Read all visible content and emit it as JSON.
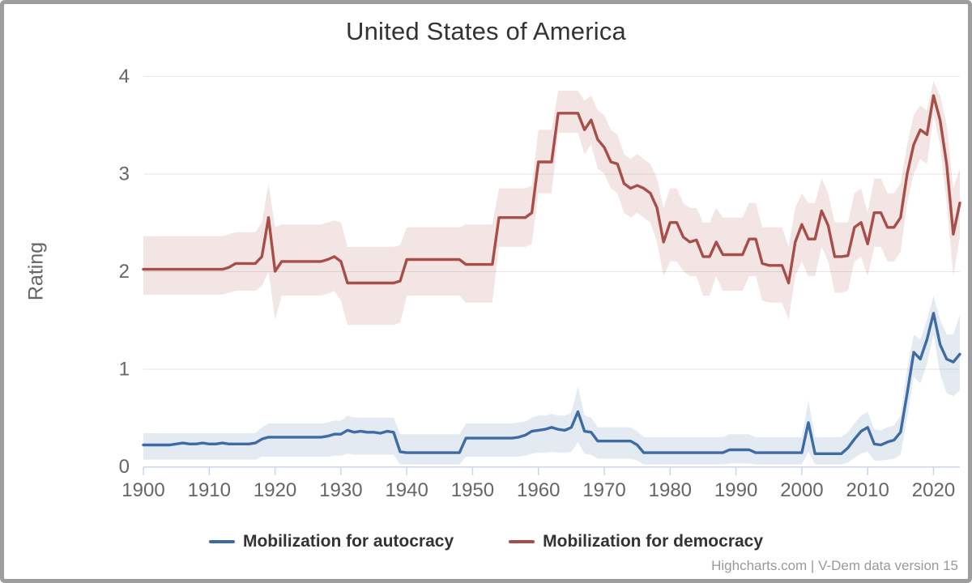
{
  "chart": {
    "title": "United States of America",
    "y_axis_title": "Rating",
    "credits": "Highcharts.com | V-Dem data version 15",
    "colors": {
      "background": "#ffffff",
      "frame": "#9d9d9d",
      "grid": "#e6e6e6",
      "axis": "#ccd6eb",
      "tick_labels": "#666666",
      "title_text": "#333333",
      "legend_text": "#333333",
      "credits_text": "#999999"
    }
  },
  "legend": {
    "items": [
      {
        "label": "Mobilization for autocracy",
        "color": "#3d6ca5"
      },
      {
        "label": "Mobilization for democracy",
        "color": "#a74e49"
      }
    ]
  },
  "chart_data": {
    "type": "line",
    "title": "United States of America",
    "xlabel": "",
    "ylabel": "Rating",
    "xlim": [
      1900,
      2024
    ],
    "ylim": [
      0,
      4
    ],
    "x_ticks": [
      1900,
      1910,
      1920,
      1930,
      1940,
      1950,
      1960,
      1970,
      1980,
      1990,
      2000,
      2010,
      2020
    ],
    "y_ticks": [
      0,
      1,
      2,
      3,
      4
    ],
    "grid": true,
    "legend_position": "bottom",
    "note": "Each series has a shaded confidence band given by band_low/band_high; x values are consecutive years 1900-2024",
    "series": [
      {
        "id": "autocracy",
        "name": "Mobilization for autocracy",
        "color": "#3d6ca5",
        "band_color": "rgba(61,108,165,0.14)",
        "values": [
          0.22,
          0.22,
          0.22,
          0.22,
          0.22,
          0.23,
          0.24,
          0.23,
          0.23,
          0.24,
          0.23,
          0.23,
          0.24,
          0.23,
          0.23,
          0.23,
          0.23,
          0.24,
          0.28,
          0.3,
          0.3,
          0.3,
          0.3,
          0.3,
          0.3,
          0.3,
          0.3,
          0.3,
          0.31,
          0.33,
          0.33,
          0.37,
          0.35,
          0.36,
          0.35,
          0.35,
          0.34,
          0.36,
          0.35,
          0.15,
          0.14,
          0.14,
          0.14,
          0.14,
          0.14,
          0.14,
          0.14,
          0.14,
          0.14,
          0.29,
          0.29,
          0.29,
          0.29,
          0.29,
          0.29,
          0.29,
          0.29,
          0.3,
          0.32,
          0.36,
          0.37,
          0.38,
          0.4,
          0.38,
          0.37,
          0.4,
          0.56,
          0.36,
          0.35,
          0.26,
          0.26,
          0.26,
          0.26,
          0.26,
          0.26,
          0.22,
          0.14,
          0.14,
          0.14,
          0.14,
          0.14,
          0.14,
          0.14,
          0.14,
          0.14,
          0.14,
          0.14,
          0.14,
          0.14,
          0.17,
          0.17,
          0.17,
          0.17,
          0.14,
          0.14,
          0.14,
          0.14,
          0.14,
          0.14,
          0.14,
          0.14,
          0.45,
          0.13,
          0.13,
          0.13,
          0.13,
          0.13,
          0.19,
          0.28,
          0.36,
          0.4,
          0.23,
          0.22,
          0.25,
          0.27,
          0.35,
          0.75,
          1.17,
          1.1,
          1.3,
          1.57,
          1.25,
          1.1,
          1.07,
          1.15
        ],
        "band_low": [
          0.07,
          0.07,
          0.07,
          0.07,
          0.07,
          0.07,
          0.07,
          0.07,
          0.07,
          0.07,
          0.07,
          0.07,
          0.07,
          0.07,
          0.07,
          0.07,
          0.07,
          0.07,
          0.1,
          0.1,
          0.1,
          0.1,
          0.1,
          0.1,
          0.1,
          0.1,
          0.1,
          0.1,
          0.1,
          0.11,
          0.11,
          0.13,
          0.12,
          0.12,
          0.12,
          0.12,
          0.12,
          0.12,
          0.12,
          0.02,
          0.02,
          0.02,
          0.02,
          0.02,
          0.02,
          0.02,
          0.02,
          0.02,
          0.02,
          0.1,
          0.1,
          0.1,
          0.1,
          0.1,
          0.1,
          0.1,
          0.1,
          0.1,
          0.11,
          0.13,
          0.14,
          0.14,
          0.15,
          0.14,
          0.14,
          0.15,
          0.25,
          0.13,
          0.12,
          0.08,
          0.08,
          0.08,
          0.08,
          0.08,
          0.08,
          0.06,
          0.02,
          0.02,
          0.02,
          0.02,
          0.02,
          0.02,
          0.02,
          0.02,
          0.02,
          0.02,
          0.02,
          0.02,
          0.02,
          0.03,
          0.03,
          0.03,
          0.03,
          0.02,
          0.02,
          0.02,
          0.02,
          0.02,
          0.02,
          0.02,
          0.02,
          0.15,
          0.02,
          0.02,
          0.02,
          0.02,
          0.02,
          0.04,
          0.09,
          0.13,
          0.15,
          0.06,
          0.06,
          0.07,
          0.08,
          0.12,
          0.5,
          0.92,
          0.85,
          1.05,
          1.35,
          0.95,
          0.75,
          0.72,
          0.78
        ],
        "band_high": [
          0.34,
          0.34,
          0.34,
          0.34,
          0.34,
          0.34,
          0.34,
          0.34,
          0.34,
          0.34,
          0.34,
          0.34,
          0.34,
          0.34,
          0.34,
          0.34,
          0.34,
          0.34,
          0.4,
          0.44,
          0.44,
          0.44,
          0.44,
          0.44,
          0.44,
          0.44,
          0.44,
          0.44,
          0.45,
          0.47,
          0.47,
          0.52,
          0.5,
          0.5,
          0.5,
          0.5,
          0.5,
          0.5,
          0.5,
          0.33,
          0.33,
          0.33,
          0.33,
          0.33,
          0.33,
          0.33,
          0.33,
          0.33,
          0.33,
          0.44,
          0.44,
          0.44,
          0.44,
          0.44,
          0.44,
          0.44,
          0.44,
          0.45,
          0.46,
          0.5,
          0.52,
          0.52,
          0.54,
          0.52,
          0.52,
          0.55,
          0.82,
          0.52,
          0.5,
          0.4,
          0.4,
          0.4,
          0.4,
          0.4,
          0.4,
          0.36,
          0.3,
          0.3,
          0.3,
          0.3,
          0.3,
          0.3,
          0.3,
          0.3,
          0.3,
          0.3,
          0.3,
          0.3,
          0.3,
          0.33,
          0.33,
          0.33,
          0.33,
          0.3,
          0.3,
          0.3,
          0.3,
          0.3,
          0.3,
          0.3,
          0.3,
          0.68,
          0.3,
          0.3,
          0.3,
          0.3,
          0.3,
          0.35,
          0.44,
          0.52,
          0.56,
          0.38,
          0.37,
          0.4,
          0.42,
          0.52,
          1.0,
          1.35,
          1.3,
          1.5,
          1.75,
          1.5,
          1.35,
          1.35,
          1.55
        ]
      },
      {
        "id": "democracy",
        "name": "Mobilization for democracy",
        "color": "#a74e49",
        "band_color": "rgba(167,78,73,0.15)",
        "values": [
          2.02,
          2.02,
          2.02,
          2.02,
          2.02,
          2.02,
          2.02,
          2.02,
          2.02,
          2.02,
          2.02,
          2.02,
          2.02,
          2.04,
          2.08,
          2.08,
          2.08,
          2.08,
          2.15,
          2.55,
          2.0,
          2.1,
          2.1,
          2.1,
          2.1,
          2.1,
          2.1,
          2.1,
          2.12,
          2.15,
          2.1,
          1.88,
          1.88,
          1.88,
          1.88,
          1.88,
          1.88,
          1.88,
          1.88,
          1.9,
          2.12,
          2.12,
          2.12,
          2.12,
          2.12,
          2.12,
          2.12,
          2.12,
          2.12,
          2.07,
          2.07,
          2.07,
          2.07,
          2.07,
          2.55,
          2.55,
          2.55,
          2.55,
          2.55,
          2.6,
          3.12,
          3.12,
          3.12,
          3.62,
          3.62,
          3.62,
          3.62,
          3.45,
          3.55,
          3.35,
          3.27,
          3.12,
          3.1,
          2.9,
          2.85,
          2.88,
          2.85,
          2.8,
          2.65,
          2.3,
          2.5,
          2.5,
          2.35,
          2.3,
          2.32,
          2.15,
          2.15,
          2.3,
          2.17,
          2.17,
          2.17,
          2.17,
          2.33,
          2.33,
          2.08,
          2.06,
          2.06,
          2.06,
          1.88,
          2.3,
          2.48,
          2.33,
          2.33,
          2.62,
          2.47,
          2.15,
          2.15,
          2.16,
          2.45,
          2.5,
          2.28,
          2.6,
          2.6,
          2.45,
          2.45,
          2.55,
          3.0,
          3.3,
          3.45,
          3.4,
          3.8,
          3.55,
          3.1,
          2.38,
          2.7
        ],
        "band_low": [
          1.76,
          1.76,
          1.76,
          1.76,
          1.76,
          1.76,
          1.76,
          1.76,
          1.76,
          1.76,
          1.76,
          1.76,
          1.76,
          1.78,
          1.8,
          1.8,
          1.8,
          1.8,
          1.85,
          2.0,
          1.5,
          1.75,
          1.75,
          1.75,
          1.75,
          1.75,
          1.75,
          1.75,
          1.77,
          1.8,
          1.7,
          1.45,
          1.45,
          1.45,
          1.45,
          1.45,
          1.45,
          1.45,
          1.45,
          1.47,
          1.75,
          1.75,
          1.75,
          1.75,
          1.75,
          1.75,
          1.75,
          1.75,
          1.75,
          1.68,
          1.68,
          1.68,
          1.68,
          1.68,
          2.25,
          2.25,
          2.25,
          2.25,
          2.25,
          2.28,
          2.8,
          2.8,
          2.8,
          3.42,
          3.42,
          3.42,
          3.42,
          3.2,
          3.3,
          3.05,
          3.0,
          2.85,
          2.8,
          2.6,
          2.55,
          2.6,
          2.55,
          2.5,
          2.3,
          1.95,
          2.1,
          2.1,
          2.0,
          1.95,
          1.95,
          1.75,
          1.75,
          1.95,
          1.8,
          1.8,
          1.8,
          1.8,
          1.95,
          1.95,
          1.7,
          1.68,
          1.68,
          1.68,
          1.5,
          1.95,
          2.1,
          1.95,
          1.95,
          2.25,
          2.1,
          1.78,
          1.78,
          1.8,
          2.1,
          2.15,
          1.95,
          2.25,
          2.25,
          2.1,
          2.1,
          2.2,
          2.7,
          3.0,
          3.15,
          3.1,
          3.6,
          3.3,
          2.7,
          1.95,
          2.35
        ],
        "band_high": [
          2.36,
          2.36,
          2.36,
          2.36,
          2.36,
          2.36,
          2.36,
          2.36,
          2.36,
          2.36,
          2.36,
          2.36,
          2.36,
          2.38,
          2.4,
          2.4,
          2.4,
          2.4,
          2.5,
          2.9,
          2.45,
          2.48,
          2.48,
          2.48,
          2.48,
          2.48,
          2.48,
          2.48,
          2.5,
          2.52,
          2.5,
          2.25,
          2.25,
          2.25,
          2.25,
          2.25,
          2.25,
          2.25,
          2.25,
          2.27,
          2.45,
          2.45,
          2.45,
          2.45,
          2.45,
          2.45,
          2.45,
          2.45,
          2.45,
          2.48,
          2.48,
          2.48,
          2.48,
          2.48,
          2.85,
          2.85,
          2.85,
          2.85,
          2.85,
          2.88,
          3.45,
          3.45,
          3.45,
          3.85,
          3.85,
          3.85,
          3.85,
          3.75,
          3.8,
          3.65,
          3.6,
          3.45,
          3.4,
          3.2,
          3.15,
          3.2,
          3.15,
          3.1,
          2.95,
          2.65,
          2.85,
          2.85,
          2.7,
          2.65,
          2.65,
          2.5,
          2.5,
          2.65,
          2.55,
          2.55,
          2.55,
          2.55,
          2.7,
          2.7,
          2.45,
          2.45,
          2.45,
          2.45,
          2.25,
          2.65,
          2.8,
          2.7,
          2.7,
          2.95,
          2.8,
          2.5,
          2.5,
          2.5,
          2.8,
          2.85,
          2.6,
          2.95,
          2.95,
          2.8,
          2.8,
          2.9,
          3.3,
          3.6,
          3.7,
          3.65,
          3.95,
          3.8,
          3.5,
          2.85,
          3.05
        ]
      }
    ]
  }
}
